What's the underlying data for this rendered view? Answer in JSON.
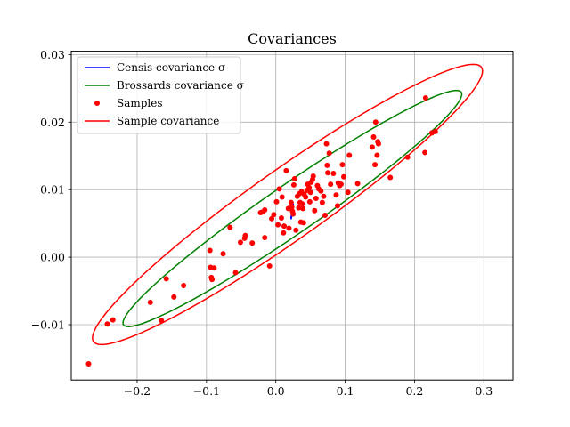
{
  "chart_data": {
    "type": "scatter",
    "title": "Covariances",
    "xlabel": "",
    "ylabel": "",
    "xlim": [
      -0.295,
      0.342
    ],
    "ylim": [
      -0.0182,
      0.0305
    ],
    "grid": true,
    "legend_position": "top-left",
    "x_ticks": [
      -0.2,
      -0.1,
      0.0,
      0.1,
      0.2,
      0.3
    ],
    "x_tick_labels": [
      "−0.2",
      "−0.1",
      "0.0",
      "0.1",
      "0.2",
      "0.3"
    ],
    "y_ticks": [
      -0.01,
      0.0,
      0.01,
      0.02,
      0.03
    ],
    "y_tick_labels": [
      "−0.01",
      "0.00",
      "0.01",
      "0.02",
      "0.03"
    ],
    "legend": [
      {
        "label": "Censis covariance σ",
        "kind": "line",
        "color": "#0000ff"
      },
      {
        "label": "Brossards covariance σ",
        "kind": "line",
        "color": "#008000"
      },
      {
        "label": "Samples",
        "kind": "marker",
        "color": "#ff0000"
      },
      {
        "label": "Sample covariance",
        "kind": "line",
        "color": "#ff0000"
      }
    ],
    "series": [
      {
        "name": "Censis covariance σ",
        "type": "ellipse",
        "color": "#0000ff",
        "center": [
          0.0235,
          0.0068
        ],
        "vector_a": [
          0.0015,
          0.0011
        ],
        "vector_b": [
          -0.0003,
          0.0002
        ]
      },
      {
        "name": "Brossards covariance σ",
        "type": "ellipse",
        "color": "#008000",
        "center": [
          0.0239,
          0.0072
        ],
        "vector_a": [
          0.243,
          0.0173
        ],
        "vector_b": [
          -0.025,
          0.0026
        ]
      },
      {
        "name": "Sample covariance",
        "type": "ellipse",
        "color": "#ff0000",
        "center": [
          0.0168,
          0.0078
        ],
        "vector_a": [
          0.279,
          0.0204
        ],
        "vector_b": [
          -0.035,
          0.0038
        ]
      },
      {
        "name": "Samples",
        "type": "scatter",
        "color": "#ff0000",
        "points": [
          [
            -0.27,
            -0.0158
          ],
          [
            -0.243,
            -0.0099
          ],
          [
            -0.235,
            -0.0093
          ],
          [
            -0.181,
            -0.0067
          ],
          [
            -0.165,
            -0.0094
          ],
          [
            -0.158,
            -0.0032
          ],
          [
            -0.147,
            -0.0059
          ],
          [
            -0.133,
            -0.0042
          ],
          [
            -0.095,
            0.001
          ],
          [
            -0.094,
            -0.0015
          ],
          [
            -0.093,
            -0.003
          ],
          [
            -0.092,
            -0.0033
          ],
          [
            -0.089,
            -0.0016
          ],
          [
            -0.076,
            0.0005
          ],
          [
            -0.066,
            0.0044
          ],
          [
            -0.058,
            -0.0023
          ],
          [
            -0.051,
            0.0022
          ],
          [
            -0.045,
            0.0028
          ],
          [
            -0.044,
            0.0032
          ],
          [
            -0.034,
            0.0021
          ],
          [
            -0.022,
            0.0066
          ],
          [
            -0.019,
            0.0067
          ],
          [
            -0.016,
            0.0029
          ],
          [
            -0.016,
            0.007
          ],
          [
            -0.009,
            -0.0013
          ],
          [
            -0.006,
            0.0057
          ],
          [
            -0.003,
            0.0063
          ],
          [
            0.001,
            0.0082
          ],
          [
            0.003,
            0.0048
          ],
          [
            0.005,
            0.0101
          ],
          [
            0.008,
            0.0058
          ],
          [
            0.009,
            0.0089
          ],
          [
            0.011,
            0.0036
          ],
          [
            0.012,
            0.0046
          ],
          [
            0.015,
            0.0128
          ],
          [
            0.018,
            0.0072
          ],
          [
            0.019,
            0.0043
          ],
          [
            0.022,
            0.0081
          ],
          [
            0.023,
            0.0074
          ],
          [
            0.024,
            0.0068
          ],
          [
            0.025,
            0.0064
          ],
          [
            0.026,
            0.0107
          ],
          [
            0.027,
            0.0116
          ],
          [
            0.029,
            0.004
          ],
          [
            0.031,
            0.009
          ],
          [
            0.033,
            0.0073
          ],
          [
            0.034,
            0.0094
          ],
          [
            0.035,
            0.0081
          ],
          [
            0.036,
            0.0052
          ],
          [
            0.037,
            0.0097
          ],
          [
            0.038,
            0.0079
          ],
          [
            0.039,
            0.0072
          ],
          [
            0.04,
            0.0051
          ],
          [
            0.041,
            0.0093
          ],
          [
            0.043,
            0.0089
          ],
          [
            0.045,
            0.0099
          ],
          [
            0.046,
            0.0108
          ],
          [
            0.048,
            0.0103
          ],
          [
            0.049,
            0.0082
          ],
          [
            0.05,
            0.0096
          ],
          [
            0.051,
            0.0111
          ],
          [
            0.053,
            0.0115
          ],
          [
            0.054,
            0.012
          ],
          [
            0.056,
            0.0069
          ],
          [
            0.058,
            0.0087
          ],
          [
            0.06,
            0.0106
          ],
          [
            0.062,
            0.0101
          ],
          [
            0.065,
            0.0098
          ],
          [
            0.067,
            0.0081
          ],
          [
            0.069,
            0.009
          ],
          [
            0.071,
            0.0062
          ],
          [
            0.073,
            0.0168
          ],
          [
            0.074,
            0.0136
          ],
          [
            0.075,
            0.0125
          ],
          [
            0.077,
            0.0154
          ],
          [
            0.079,
            0.0108
          ],
          [
            0.083,
            0.0124
          ],
          [
            0.087,
            0.0092
          ],
          [
            0.089,
            0.0076
          ],
          [
            0.09,
            0.011
          ],
          [
            0.092,
            0.0106
          ],
          [
            0.094,
            0.0108
          ],
          [
            0.096,
            0.0137
          ],
          [
            0.098,
            0.0119
          ],
          [
            0.104,
            0.0096
          ],
          [
            0.106,
            0.0151
          ],
          [
            0.118,
            0.0109
          ],
          [
            0.139,
            0.0163
          ],
          [
            0.141,
            0.0178
          ],
          [
            0.143,
            0.0137
          ],
          [
            0.144,
            0.02
          ],
          [
            0.146,
            0.0151
          ],
          [
            0.147,
            0.0171
          ],
          [
            0.148,
            0.0168
          ],
          [
            0.165,
            0.0118
          ],
          [
            0.19,
            0.0148
          ],
          [
            0.215,
            0.0155
          ],
          [
            0.216,
            0.0236
          ],
          [
            0.225,
            0.0184
          ],
          [
            0.23,
            0.0186
          ]
        ]
      }
    ]
  }
}
